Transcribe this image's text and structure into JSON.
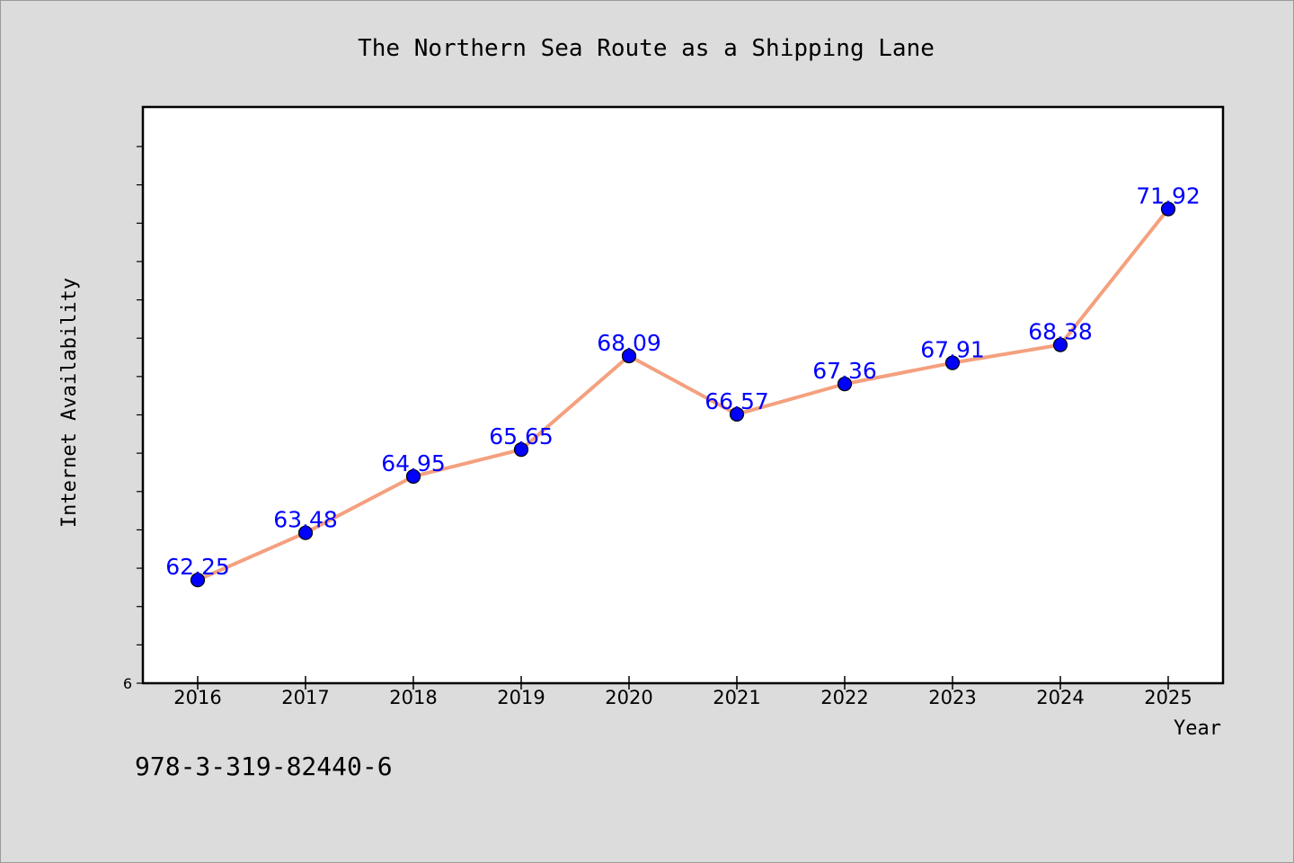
{
  "chart_data": {
    "type": "line",
    "title": "The Northern Sea Route as a Shipping Lane",
    "xlabel": "Year",
    "ylabel": "Internet Availability",
    "x": [
      "2016",
      "2017",
      "2018",
      "2019",
      "2020",
      "2021",
      "2022",
      "2023",
      "2024",
      "2025"
    ],
    "values": [
      62.25,
      63.48,
      64.95,
      65.65,
      68.09,
      66.57,
      67.36,
      67.91,
      68.38,
      71.92
    ],
    "data_labels": [
      "62.25",
      "63.48",
      "64.95",
      "65.65",
      "68.09",
      "66.57",
      "67.36",
      "67.91",
      "68.38",
      "71.92"
    ],
    "y_tick_labels_shown": [
      "6"
    ],
    "ylim": [
      59.56,
      74.58
    ],
    "grid": false,
    "legend": "none",
    "colors": {
      "line": "#f4a07e",
      "marker": "#0000ff",
      "data_label": "#0000ff",
      "plot_background": "#ffffff",
      "figure_background": "#dcdcdc"
    }
  },
  "footer": {
    "isbn": "978-3-319-82440-6"
  }
}
